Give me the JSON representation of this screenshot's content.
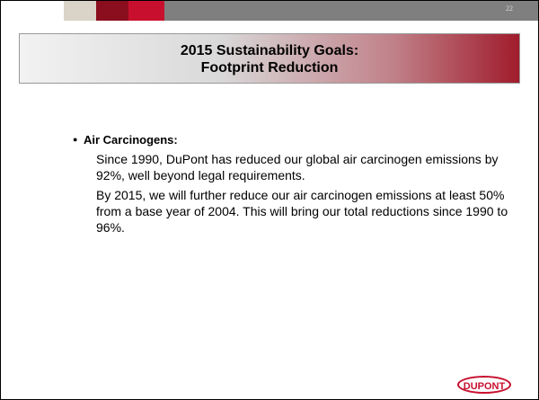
{
  "slide_number": "22",
  "title": "2015 Sustainability Goals:\nFootprint Reduction",
  "bullet": "Air Carcinogens:",
  "paragraphs": [
    "Since 1990, DuPont has reduced our global air carcinogen emissions by 92%, well beyond legal requirements.",
    "By 2015, we will further reduce our air carcinogen emissions at least 50% from a base year of 2004. This will bring our total reductions since 1990 to 96%."
  ],
  "logo": "DUPONT"
}
